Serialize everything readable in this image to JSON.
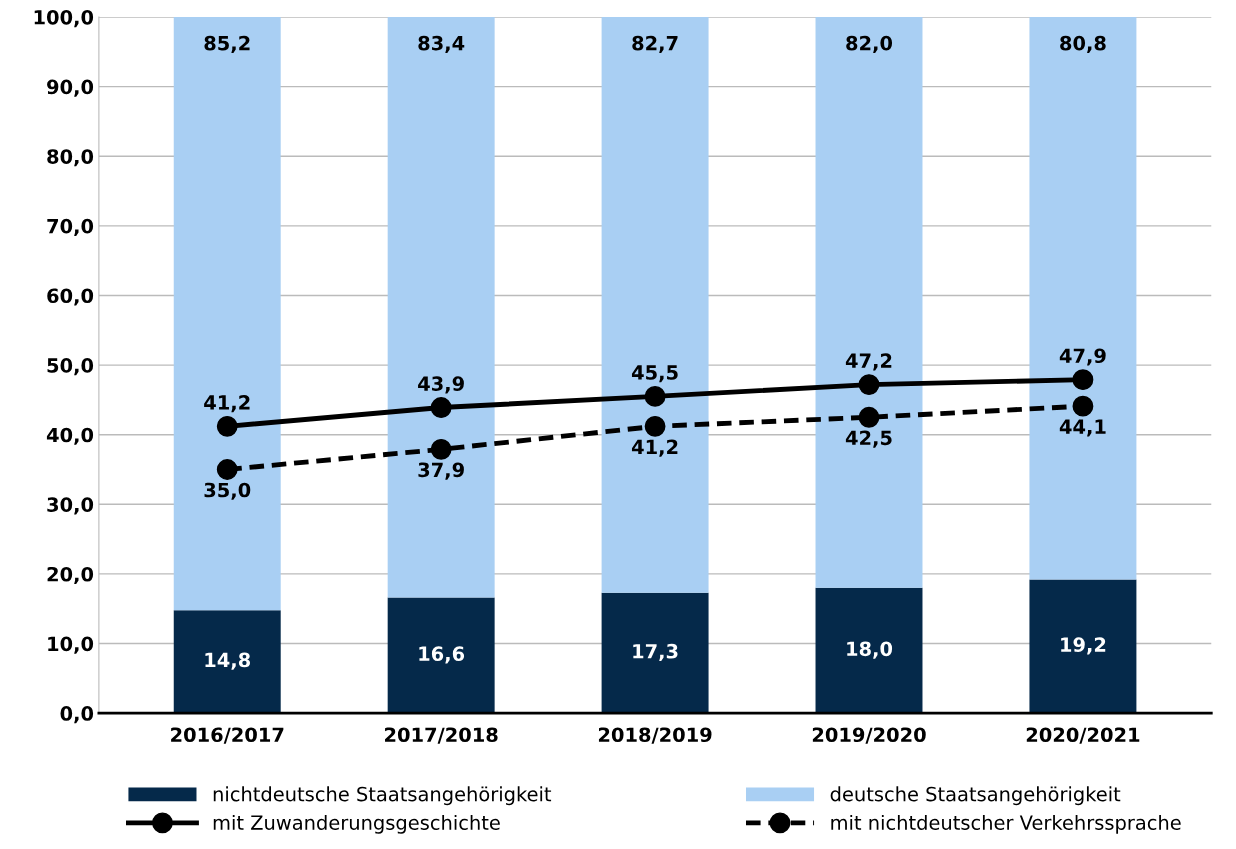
{
  "chart_data": {
    "type": "bar",
    "stacked": true,
    "categories": [
      "2016/2017",
      "2017/2018",
      "2018/2019",
      "2019/2020",
      "2020/2021"
    ],
    "series": [
      {
        "name": "nichtdeutsche Staatsangehörigkeit",
        "type": "bar",
        "color": "#05294a",
        "values": [
          14.8,
          16.6,
          17.3,
          18.0,
          19.2
        ],
        "value_labels": [
          "14,8",
          "16,6",
          "17,3",
          "18,0",
          "19,2"
        ]
      },
      {
        "name": "deutsche Staatsangehörigkeit",
        "type": "bar",
        "color": "#a9cff3",
        "values": [
          85.2,
          83.4,
          82.7,
          82.0,
          80.8
        ],
        "value_labels": [
          "85,2",
          "83,4",
          "82,7",
          "82,0",
          "80,8"
        ]
      },
      {
        "name": "mit Zuwanderungsgeschichte",
        "type": "line",
        "color": "#000000",
        "line_style": "solid",
        "marker": "circle",
        "values": [
          41.2,
          43.9,
          45.5,
          47.2,
          47.9
        ],
        "value_labels": [
          "41,2",
          "43,9",
          "45,5",
          "47,2",
          "47,9"
        ]
      },
      {
        "name": "mit nichtdeutscher Verkehrssprache",
        "type": "line",
        "color": "#000000",
        "line_style": "dashed",
        "marker": "circle",
        "values": [
          35.0,
          37.9,
          41.2,
          42.5,
          44.1
        ],
        "value_labels": [
          "35,0",
          "37,9",
          "41,2",
          "42,5",
          "44,1"
        ]
      }
    ],
    "ylim": [
      0,
      100
    ],
    "yticks": [
      {
        "value": 0,
        "label": "0,0"
      },
      {
        "value": 10,
        "label": "10,0"
      },
      {
        "value": 20,
        "label": "20,0"
      },
      {
        "value": 30,
        "label": "30,0"
      },
      {
        "value": 40,
        "label": "40,0"
      },
      {
        "value": 50,
        "label": "50,0"
      },
      {
        "value": 60,
        "label": "60,0"
      },
      {
        "value": 70,
        "label": "70,0"
      },
      {
        "value": 80,
        "label": "80,0"
      },
      {
        "value": 90,
        "label": "90,0"
      },
      {
        "value": 100,
        "label": "100,0"
      }
    ],
    "grid": "y",
    "legend": "bottom"
  }
}
